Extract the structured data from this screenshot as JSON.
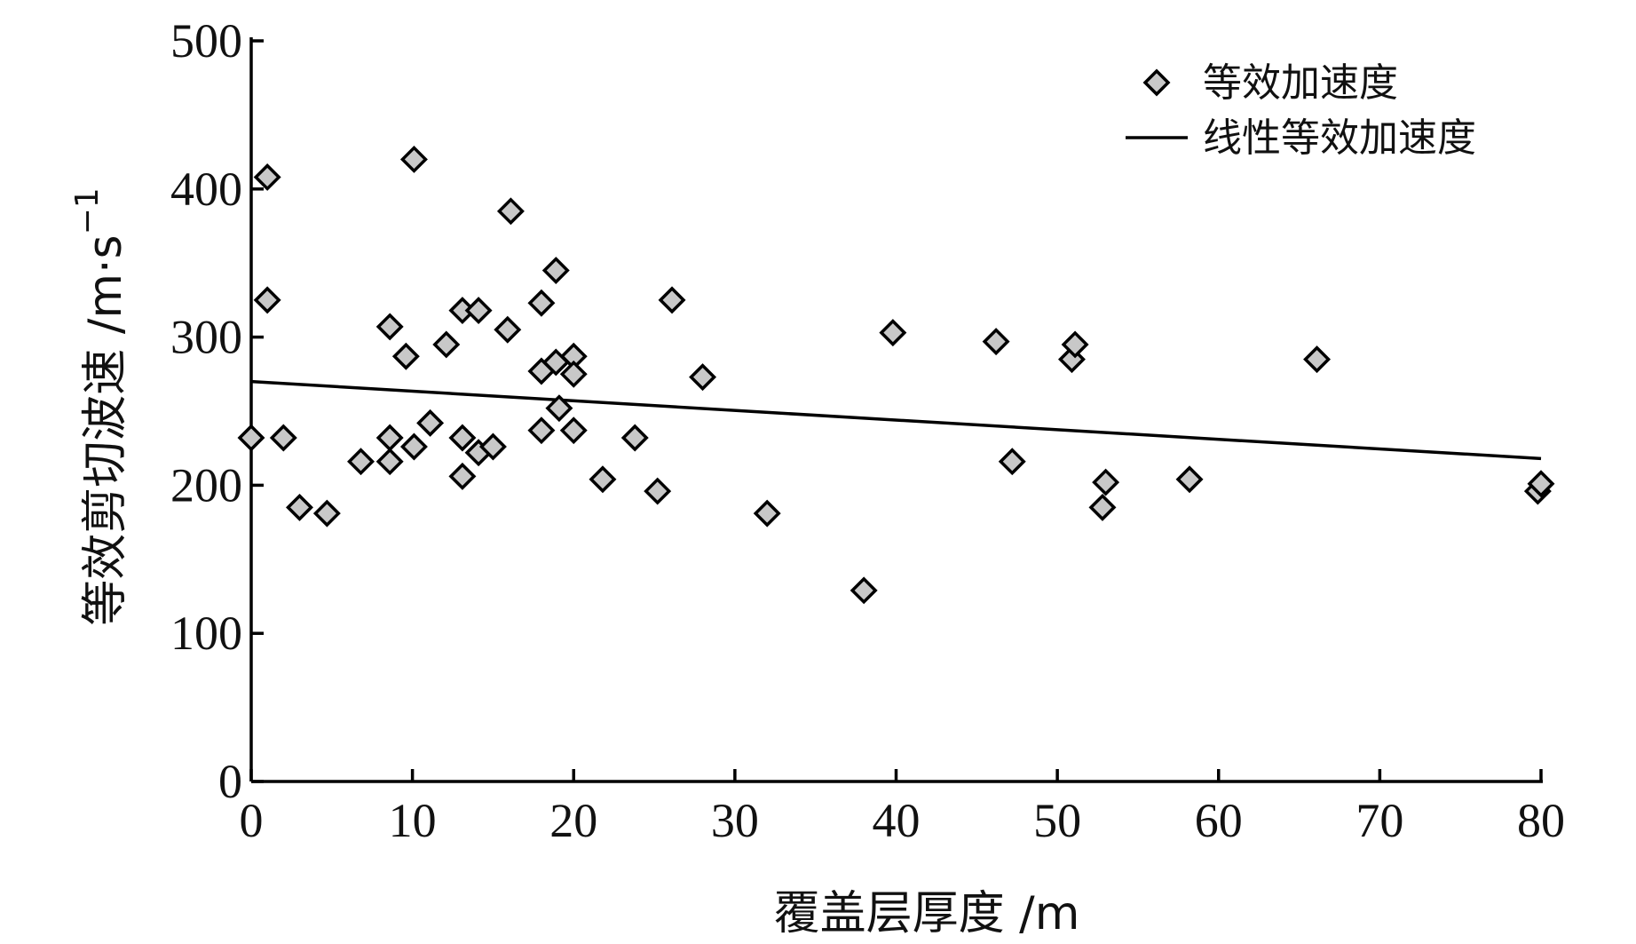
{
  "chart_data": {
    "type": "scatter",
    "xlabel": "覆盖层厚度 /m",
    "ylabel": "等效剪切波速 /m·s",
    "ylabel_superscript": "−1",
    "xlim": [
      0,
      80
    ],
    "ylim": [
      0,
      500
    ],
    "x_ticks": [
      "0",
      "10",
      "20",
      "30",
      "40",
      "50",
      "60",
      "70",
      "80"
    ],
    "y_ticks": [
      "0",
      "100",
      "200",
      "300",
      "400",
      "500"
    ],
    "grid": false,
    "legend_position": "top-right",
    "series": [
      {
        "name": "等效加速度",
        "kind": "scatter",
        "marker": "diamond",
        "color": "#c8c8c8",
        "points": [
          [
            0,
            232
          ],
          [
            1,
            408
          ],
          [
            1,
            325
          ],
          [
            2,
            232
          ],
          [
            3,
            185
          ],
          [
            4.7,
            181
          ],
          [
            6.8,
            216
          ],
          [
            8.6,
            307
          ],
          [
            8.6,
            232
          ],
          [
            8.6,
            216
          ],
          [
            9.6,
            287
          ],
          [
            10.1,
            420
          ],
          [
            10.1,
            226
          ],
          [
            11.1,
            242
          ],
          [
            12.1,
            295
          ],
          [
            13.1,
            318
          ],
          [
            13.1,
            232
          ],
          [
            13.1,
            206
          ],
          [
            14.1,
            318
          ],
          [
            14.1,
            222
          ],
          [
            15,
            226
          ],
          [
            15.9,
            305
          ],
          [
            16.1,
            385
          ],
          [
            18,
            323
          ],
          [
            18,
            277
          ],
          [
            18,
            237
          ],
          [
            18.9,
            345
          ],
          [
            18.9,
            283
          ],
          [
            19.1,
            252
          ],
          [
            20,
            287
          ],
          [
            20,
            275
          ],
          [
            20,
            237
          ],
          [
            21.8,
            204
          ],
          [
            23.8,
            232
          ],
          [
            25.2,
            196
          ],
          [
            26.1,
            325
          ],
          [
            28,
            273
          ],
          [
            32,
            181
          ],
          [
            38,
            129
          ],
          [
            39.8,
            303
          ],
          [
            46.2,
            297
          ],
          [
            47.2,
            216
          ],
          [
            50.9,
            285
          ],
          [
            51.1,
            295
          ],
          [
            52.8,
            185
          ],
          [
            53,
            202
          ],
          [
            58.2,
            204
          ],
          [
            66.1,
            285
          ],
          [
            79.8,
            196
          ],
          [
            80,
            201
          ]
        ]
      },
      {
        "name": "线性等效加速度",
        "kind": "line",
        "color": "#000000",
        "points": [
          [
            0,
            270
          ],
          [
            80,
            218
          ]
        ]
      }
    ]
  }
}
